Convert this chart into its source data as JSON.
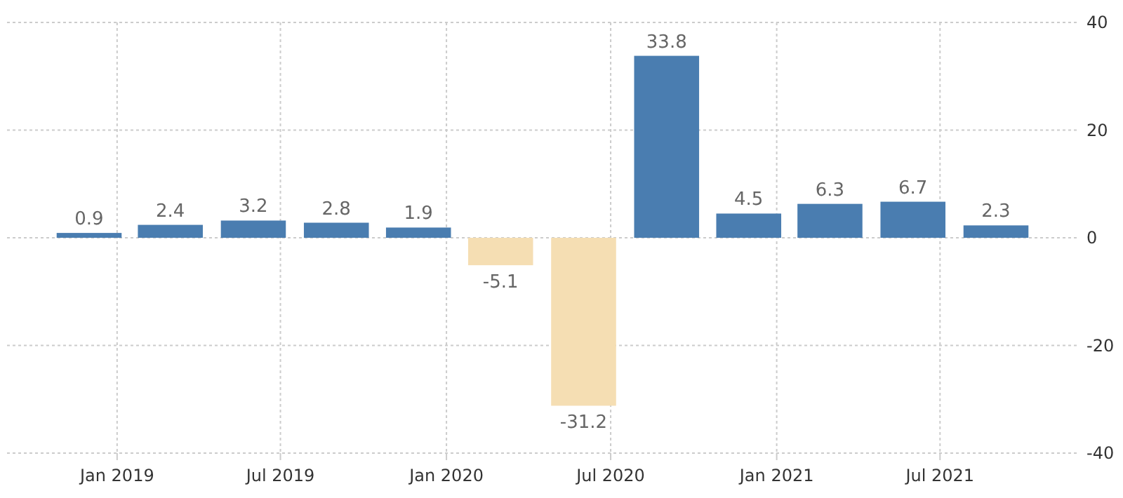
{
  "chart_data": {
    "type": "bar",
    "x": [
      "2018-12-01",
      "2019-03-01",
      "2019-06-01",
      "2019-09-01",
      "2019-12-01",
      "2020-03-01",
      "2020-06-01",
      "2020-09-01",
      "2020-12-01",
      "2021-03-01",
      "2021-06-01",
      "2021-09-01"
    ],
    "values": [
      0.9,
      2.4,
      3.2,
      2.8,
      1.9,
      -5.1,
      -31.2,
      33.8,
      4.5,
      6.3,
      6.7,
      2.3
    ],
    "colors": [
      "#4a7db0",
      "#4a7db0",
      "#4a7db0",
      "#4a7db0",
      "#4a7db0",
      "#f5deb3",
      "#f5deb3",
      "#4a7db0",
      "#4a7db0",
      "#4a7db0",
      "#4a7db0",
      "#4a7db0"
    ],
    "data_labels": true,
    "xlim": [
      "2018-09-01",
      "2021-12-01"
    ],
    "xticks": [
      {
        "value": "2019-01-01",
        "label": "Jan 2019"
      },
      {
        "value": "2019-07-01",
        "label": "Jul 2019"
      },
      {
        "value": "2020-01-01",
        "label": "Jan 2020"
      },
      {
        "value": "2020-07-01",
        "label": "Jul 2020"
      },
      {
        "value": "2021-01-01",
        "label": "Jan 2021"
      },
      {
        "value": "2021-07-01",
        "label": "Jul 2021"
      }
    ],
    "ylim": [
      -40,
      40
    ],
    "yticks": [
      -40,
      -20,
      0,
      20,
      40
    ],
    "grid": true
  }
}
